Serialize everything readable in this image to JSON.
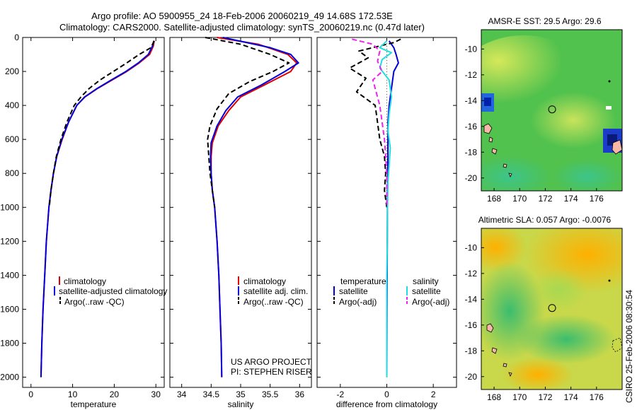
{
  "header": {
    "line1": "Argo profile: AO 5900955_24 18-Feb-2006 20060219_49 14.68S 172.53E",
    "line2": "Climatology: CARS2000. Satellite-adjusted climatology: synTS_20060219.nc (0.47d later)"
  },
  "footer_vertical": "CSIRO 25-Feb-2006 08:30:54",
  "colors": {
    "red": "#e00000",
    "blue": "#0000dd",
    "black": "#000000",
    "cyan": "#22dddd",
    "magenta": "#ee22ee"
  },
  "chart_data": [
    {
      "type": "line",
      "id": "temperature",
      "xlabel": "temperature",
      "xlim": [
        -2,
        32
      ],
      "ylim": [
        2060,
        0
      ],
      "xticks": [
        0,
        10,
        20,
        30
      ],
      "yticks": [
        0,
        200,
        400,
        600,
        800,
        1000,
        1200,
        1400,
        1600,
        1800,
        2000
      ],
      "series": [
        {
          "name": "climatology",
          "color": "red",
          "dash": "",
          "points": [
            [
              29.6,
              20
            ],
            [
              29.4,
              50
            ],
            [
              28.5,
              100
            ],
            [
              26,
              150
            ],
            [
              23,
              200
            ],
            [
              19.5,
              250
            ],
            [
              16,
              300
            ],
            [
              13,
              350
            ],
            [
              11,
              400
            ],
            [
              9,
              500
            ],
            [
              7.5,
              600
            ],
            [
              6.2,
              700
            ],
            [
              5.4,
              800
            ],
            [
              4.8,
              900
            ],
            [
              4.3,
              1000
            ],
            [
              3.7,
              1200
            ],
            [
              3.3,
              1400
            ],
            [
              2.9,
              1600
            ],
            [
              2.6,
              1800
            ],
            [
              2.4,
              2000
            ]
          ]
        },
        {
          "name": "satellite-adjusted climatology",
          "color": "blue",
          "dash": "",
          "points": [
            [
              29.5,
              20
            ],
            [
              29.2,
              50
            ],
            [
              28.2,
              100
            ],
            [
              25.8,
              150
            ],
            [
              22.8,
              200
            ],
            [
              19.3,
              250
            ],
            [
              15.9,
              300
            ],
            [
              12.9,
              350
            ],
            [
              11,
              400
            ],
            [
              9,
              500
            ],
            [
              7.4,
              600
            ],
            [
              6.2,
              700
            ],
            [
              5.4,
              800
            ],
            [
              4.8,
              900
            ],
            [
              4.3,
              1000
            ],
            [
              3.7,
              1200
            ],
            [
              3.3,
              1400
            ],
            [
              2.9,
              1600
            ],
            [
              2.6,
              1800
            ],
            [
              2.4,
              2000
            ]
          ]
        },
        {
          "name": "Argo(..raw -QC)",
          "color": "black",
          "dash": "7,4",
          "points": [
            [
              29.6,
              20
            ],
            [
              28.8,
              60
            ],
            [
              26,
              100
            ],
            [
              23,
              150
            ],
            [
              19.8,
              200
            ],
            [
              16.6,
              250
            ],
            [
              14,
              300
            ],
            [
              12,
              350
            ],
            [
              10.4,
              400
            ],
            [
              8.6,
              500
            ],
            [
              7.2,
              600
            ],
            [
              6.1,
              700
            ],
            [
              5.4,
              800
            ],
            [
              4.8,
              900
            ],
            [
              4.4,
              1000
            ]
          ]
        }
      ],
      "legend": [
        "climatology",
        "satellite-adjusted climatology",
        "Argo(..raw -QC)"
      ]
    },
    {
      "type": "line",
      "id": "salinity",
      "xlabel": "salinity",
      "xlim": [
        33.8,
        36.2
      ],
      "ylim": [
        2060,
        0
      ],
      "xticks": [
        34,
        34.5,
        35,
        35.5,
        36
      ],
      "series": [
        {
          "name": "climatology",
          "color": "red",
          "dash": "",
          "points": [
            [
              34.6,
              0
            ],
            [
              35.3,
              40
            ],
            [
              35.8,
              100
            ],
            [
              35.95,
              150
            ],
            [
              35.85,
              200
            ],
            [
              35.4,
              280
            ],
            [
              35.0,
              350
            ],
            [
              34.8,
              430
            ],
            [
              34.62,
              520
            ],
            [
              34.52,
              620
            ],
            [
              34.5,
              700
            ],
            [
              34.5,
              800
            ],
            [
              34.52,
              900
            ],
            [
              34.56,
              1000
            ],
            [
              34.6,
              1200
            ],
            [
              34.63,
              1400
            ],
            [
              34.65,
              1600
            ],
            [
              34.67,
              1800
            ],
            [
              34.68,
              2000
            ]
          ]
        },
        {
          "name": "satellite adj. clim.",
          "color": "blue",
          "dash": "",
          "points": [
            [
              34.7,
              0
            ],
            [
              35.5,
              60
            ],
            [
              35.85,
              100
            ],
            [
              35.98,
              150
            ],
            [
              35.75,
              200
            ],
            [
              35.35,
              280
            ],
            [
              34.95,
              350
            ],
            [
              34.75,
              430
            ],
            [
              34.6,
              520
            ],
            [
              34.5,
              620
            ],
            [
              34.49,
              700
            ],
            [
              34.5,
              800
            ],
            [
              34.52,
              900
            ],
            [
              34.56,
              1000
            ],
            [
              34.6,
              1200
            ],
            [
              34.63,
              1400
            ],
            [
              34.65,
              1600
            ],
            [
              34.67,
              1800
            ],
            [
              34.68,
              2000
            ]
          ]
        },
        {
          "name": "Argo(..raw -QC)",
          "color": "black",
          "dash": "7,4",
          "points": [
            [
              34.4,
              0
            ],
            [
              35.0,
              40
            ],
            [
              35.5,
              100
            ],
            [
              35.82,
              150
            ],
            [
              35.55,
              200
            ],
            [
              35.15,
              260
            ],
            [
              34.8,
              330
            ],
            [
              34.6,
              420
            ],
            [
              34.48,
              520
            ],
            [
              34.44,
              600
            ],
            [
              34.46,
              700
            ],
            [
              34.48,
              800
            ],
            [
              34.52,
              900
            ],
            [
              34.56,
              1000
            ]
          ]
        }
      ],
      "legend": [
        "climatology",
        "satellite adj. clim.",
        "Argo(..raw -QC)"
      ],
      "annotation": [
        "US ARGO PROJECT",
        "PI: STEPHEN RISER"
      ]
    },
    {
      "type": "line",
      "id": "difference",
      "xlabel": "difference from climatology",
      "xlim": [
        -3,
        3
      ],
      "ylim": [
        2060,
        0
      ],
      "xticks": [
        -2,
        0,
        2
      ],
      "series": [
        {
          "name": "temperature satellite",
          "color": "blue",
          "dash": "",
          "points": [
            [
              0.1,
              20
            ],
            [
              0.3,
              60
            ],
            [
              0.4,
              100
            ],
            [
              0.5,
              150
            ],
            [
              0.3,
              200
            ],
            [
              0.2,
              300
            ],
            [
              0.1,
              400
            ],
            [
              0.05,
              500
            ],
            [
              0.05,
              700
            ],
            [
              0.03,
              900
            ],
            [
              0.02,
              1200
            ],
            [
              0.01,
              1600
            ],
            [
              0,
              2000
            ]
          ]
        },
        {
          "name": "temperature Argo(-adj)",
          "color": "black",
          "dash": "7,4",
          "points": [
            [
              0.6,
              10
            ],
            [
              0.3,
              30
            ],
            [
              -1.2,
              80
            ],
            [
              -0.8,
              120
            ],
            [
              -1.6,
              180
            ],
            [
              -0.9,
              240
            ],
            [
              -1.3,
              320
            ],
            [
              -0.5,
              400
            ],
            [
              -0.4,
              500
            ],
            [
              -0.3,
              600
            ],
            [
              -0.1,
              700
            ],
            [
              -0.05,
              800
            ],
            [
              -0.1,
              900
            ],
            [
              0,
              1000
            ]
          ]
        },
        {
          "name": "salinity satellite",
          "color": "cyan",
          "dash": "",
          "points": [
            [
              0,
              20
            ],
            [
              -0.3,
              60
            ],
            [
              0.2,
              90
            ],
            [
              -0.2,
              130
            ],
            [
              -0.3,
              180
            ],
            [
              0.1,
              250
            ],
            [
              0.2,
              350
            ],
            [
              0.1,
              450
            ],
            [
              0.05,
              550
            ],
            [
              0.15,
              650
            ],
            [
              0.1,
              750
            ],
            [
              0.05,
              850
            ],
            [
              0.03,
              1000
            ],
            [
              0.02,
              1200
            ],
            [
              0,
              1400
            ],
            [
              0,
              2000
            ]
          ]
        },
        {
          "name": "salinity Argo(-adj)",
          "color": "magenta",
          "dash": "7,4",
          "points": [
            [
              -1.5,
              10
            ],
            [
              -0.6,
              40
            ],
            [
              -0.3,
              80
            ],
            [
              -0.4,
              140
            ],
            [
              -0.2,
              200
            ],
            [
              -0.6,
              250
            ],
            [
              -0.5,
              300
            ],
            [
              -0.3,
              400
            ],
            [
              -0.2,
              500
            ],
            [
              -0.1,
              600
            ],
            [
              -0.05,
              700
            ],
            [
              0,
              800
            ],
            [
              0,
              900
            ],
            [
              0,
              1000
            ]
          ]
        }
      ],
      "legend_headers": [
        "temperature",
        "salinity"
      ],
      "legend": [
        "satellite",
        "Argo(-adj)",
        "satellite",
        "Argo(-adj)"
      ]
    },
    {
      "type": "heatmap",
      "id": "sst-map",
      "title": "AMSR-E SST: 29.5 Argo: 29.6",
      "xlim": [
        167,
        178
      ],
      "ylim": [
        -21,
        -8.5
      ],
      "xticks": [
        168,
        170,
        172,
        174,
        176
      ],
      "yticks": [
        -10,
        -12,
        -14,
        -16,
        -18,
        -20
      ],
      "marker": {
        "lon": 172.53,
        "lat": -14.68
      }
    },
    {
      "type": "heatmap",
      "id": "sla-map",
      "title": "Altimetric SLA: 0.057 Argo: -0.0076",
      "xlim": [
        167,
        178
      ],
      "ylim": [
        -21,
        -8.5
      ],
      "xticks": [
        168,
        170,
        172,
        174,
        176
      ],
      "yticks": [
        -10,
        -12,
        -14,
        -16,
        -18,
        -20
      ],
      "marker": {
        "lon": 172.53,
        "lat": -14.68
      }
    }
  ]
}
